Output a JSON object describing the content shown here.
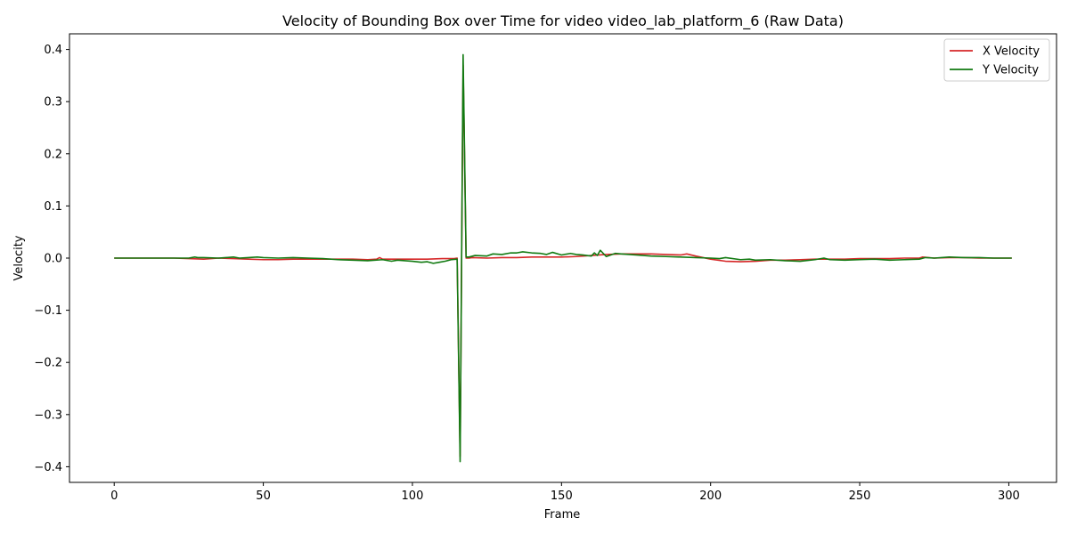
{
  "chart_data": {
    "type": "line",
    "title": "Velocity of Bounding Box over Time for video video_lab_platform_6 (Raw Data)",
    "xlabel": "Frame",
    "ylabel": "Velocity",
    "xlim": [
      -15,
      316
    ],
    "ylim": [
      -0.43,
      0.43
    ],
    "xticks": [
      0,
      50,
      100,
      150,
      200,
      250,
      300
    ],
    "yticks": [
      -0.4,
      -0.3,
      -0.2,
      -0.1,
      0.0,
      0.1,
      0.2,
      0.3,
      0.4
    ],
    "xtick_labels": [
      "0",
      "50",
      "100",
      "150",
      "200",
      "250",
      "300"
    ],
    "ytick_labels": [
      "−0.4",
      "−0.3",
      "−0.2",
      "−0.1",
      "0.0",
      "0.1",
      "0.2",
      "0.3",
      "0.4"
    ],
    "grid": false,
    "legend": {
      "position": "top-right"
    },
    "series": [
      {
        "name": "X Velocity",
        "color": "#d62728",
        "x": [
          0,
          20,
          25,
          30,
          35,
          40,
          45,
          50,
          55,
          60,
          65,
          70,
          75,
          80,
          85,
          88,
          89,
          90,
          95,
          100,
          105,
          110,
          114,
          115,
          116,
          117,
          118,
          119,
          120,
          125,
          130,
          135,
          140,
          145,
          150,
          155,
          160,
          165,
          170,
          175,
          180,
          185,
          190,
          192,
          195,
          200,
          205,
          210,
          215,
          220,
          225,
          230,
          235,
          240,
          245,
          250,
          255,
          260,
          265,
          270,
          271,
          275,
          280,
          285,
          290,
          295,
          301
        ],
        "values": [
          0.0,
          0.0,
          -0.001,
          -0.002,
          0.0,
          -0.001,
          -0.002,
          -0.003,
          -0.003,
          -0.002,
          -0.002,
          -0.002,
          -0.002,
          -0.002,
          -0.003,
          -0.002,
          0.001,
          -0.002,
          -0.002,
          -0.002,
          -0.002,
          -0.001,
          -0.001,
          0.0,
          -0.38,
          0.37,
          0.0,
          0.0,
          0.001,
          0.0,
          0.001,
          0.001,
          0.002,
          0.002,
          0.002,
          0.003,
          0.005,
          0.007,
          0.008,
          0.008,
          0.008,
          0.007,
          0.006,
          0.008,
          0.004,
          -0.002,
          -0.006,
          -0.007,
          -0.006,
          -0.004,
          -0.004,
          -0.003,
          -0.002,
          -0.002,
          -0.002,
          -0.001,
          -0.001,
          -0.001,
          0.0,
          0.0,
          0.002,
          0.0,
          0.001,
          0.001,
          0.0,
          0.0,
          0.0
        ]
      },
      {
        "name": "Y Velocity",
        "color": "#117a11",
        "x": [
          0,
          20,
          25,
          27,
          28,
          30,
          35,
          40,
          42,
          45,
          48,
          50,
          55,
          60,
          65,
          70,
          75,
          80,
          85,
          90,
          93,
          95,
          100,
          103,
          105,
          107,
          109,
          111,
          113,
          115,
          116,
          117,
          118,
          119,
          121,
          125,
          127,
          130,
          133,
          135,
          137,
          140,
          143,
          145,
          147,
          150,
          153,
          155,
          157,
          160,
          161,
          162,
          163,
          165,
          168,
          170,
          175,
          180,
          185,
          190,
          195,
          200,
          203,
          205,
          210,
          213,
          215,
          220,
          225,
          230,
          235,
          238,
          240,
          245,
          250,
          255,
          260,
          265,
          270,
          272,
          275,
          280,
          285,
          290,
          295,
          301
        ],
        "values": [
          0.0,
          0.0,
          0.0,
          0.002,
          0.001,
          0.001,
          0.0,
          0.002,
          0.0,
          0.001,
          0.002,
          0.001,
          0.0,
          0.001,
          0.0,
          -0.001,
          -0.003,
          -0.004,
          -0.005,
          -0.003,
          -0.006,
          -0.004,
          -0.006,
          -0.008,
          -0.007,
          -0.01,
          -0.008,
          -0.006,
          -0.003,
          -0.002,
          -0.39,
          0.39,
          0.002,
          0.002,
          0.005,
          0.004,
          0.008,
          0.007,
          0.01,
          0.01,
          0.012,
          0.01,
          0.009,
          0.007,
          0.011,
          0.006,
          0.009,
          0.007,
          0.006,
          0.004,
          0.01,
          0.005,
          0.015,
          0.003,
          0.009,
          0.008,
          0.006,
          0.004,
          0.003,
          0.002,
          0.001,
          0.0,
          -0.001,
          0.001,
          -0.003,
          -0.002,
          -0.004,
          -0.003,
          -0.005,
          -0.006,
          -0.003,
          0.0,
          -0.003,
          -0.004,
          -0.003,
          -0.002,
          -0.004,
          -0.003,
          -0.002,
          0.001,
          0.0,
          0.002,
          0.001,
          0.001,
          0.0,
          0.0
        ]
      }
    ]
  }
}
